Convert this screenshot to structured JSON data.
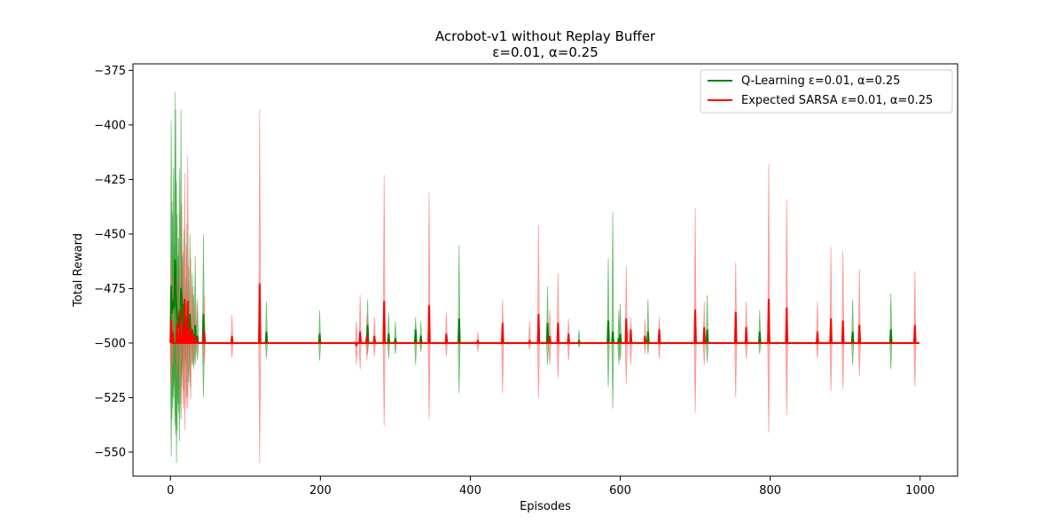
{
  "chart_data": {
    "type": "line",
    "title": "Acrobot-v1 without Replay Buffer",
    "subtitle": "ε=0.01, α=0.25",
    "xlabel": "Episodes",
    "ylabel": "Total Reward",
    "xlim": [
      -50,
      1050
    ],
    "ylim": [
      -561,
      -372
    ],
    "xticks": [
      0,
      200,
      400,
      600,
      800,
      1000
    ],
    "yticks": [
      -550,
      -525,
      -500,
      -475,
      -450,
      -425,
      -400,
      -375
    ],
    "grid": false,
    "legend_position": "top-right",
    "baseline": -500,
    "x_count": 1000,
    "series": [
      {
        "name": "Q-Learning ε=0.01, α=0.25",
        "color": "#008000",
        "band_color": "#2ca02c",
        "spikes": [
          [
            1,
            -474,
            -398,
            -552
          ],
          [
            2,
            -486,
            -435,
            -535
          ],
          [
            3,
            -481,
            -440,
            -530
          ],
          [
            4,
            -484,
            -420,
            -525
          ],
          [
            5,
            -483,
            -455,
            -520
          ],
          [
            6,
            -462,
            -385,
            -538
          ],
          [
            7,
            -472,
            -393,
            -542
          ],
          [
            8,
            -484,
            -426,
            -555
          ],
          [
            9,
            -488,
            -441,
            -540
          ],
          [
            10,
            -493,
            -460,
            -528
          ],
          [
            11,
            -491,
            -452,
            -532
          ],
          [
            12,
            -486,
            -420,
            -545
          ],
          [
            14,
            -475,
            -393,
            -535
          ],
          [
            15,
            -478,
            -436,
            -520
          ],
          [
            16,
            -490,
            -460,
            -512
          ],
          [
            18,
            -482,
            -448,
            -522
          ],
          [
            20,
            -495,
            -470,
            -510
          ],
          [
            22,
            -488,
            -445,
            -525
          ],
          [
            24,
            -493,
            -465,
            -518
          ],
          [
            26,
            -487,
            -450,
            -520
          ],
          [
            29,
            -494,
            -468,
            -510
          ],
          [
            31,
            -496,
            -478,
            -512
          ],
          [
            33,
            -492,
            -460,
            -510
          ],
          [
            36,
            -497,
            -480,
            -508
          ],
          [
            44,
            -487,
            -450,
            -525
          ],
          [
            128,
            -495,
            -481,
            -507
          ],
          [
            199,
            -496,
            -485,
            -508
          ],
          [
            263,
            -492,
            -480,
            -505
          ],
          [
            291,
            -496,
            -486,
            -507
          ],
          [
            300,
            -498,
            -490,
            -505
          ],
          [
            327,
            -494,
            -488,
            -510
          ],
          [
            334,
            -497,
            -490,
            -504
          ],
          [
            385,
            -489,
            -455,
            -523
          ],
          [
            503,
            -491,
            -474,
            -510
          ],
          [
            545,
            -499,
            -494,
            -502
          ],
          [
            584,
            -490,
            -461,
            -520
          ],
          [
            590,
            -495,
            -440,
            -530
          ],
          [
            598,
            -498,
            -485,
            -510
          ],
          [
            600,
            -496,
            -482,
            -508
          ],
          [
            637,
            -495,
            -480,
            -505
          ],
          [
            716,
            -494,
            -478,
            -509
          ],
          [
            786,
            -495,
            -485,
            -505
          ],
          [
            910,
            -495,
            -480,
            -510
          ],
          [
            961,
            -494,
            -477,
            -512
          ]
        ]
      },
      {
        "name": "Expected SARSA ε=0.01, α=0.25",
        "color": "#ff0000",
        "band_color": "#ff6666",
        "spikes": [
          [
            1,
            -490,
            -462,
            -520
          ],
          [
            3,
            -495,
            -470,
            -510
          ],
          [
            9,
            -491,
            -470,
            -515
          ],
          [
            13,
            -485,
            -440,
            -528
          ],
          [
            17,
            -492,
            -458,
            -530
          ],
          [
            19,
            -480,
            -422,
            -540
          ],
          [
            21,
            -490,
            -455,
            -530
          ],
          [
            23,
            -481,
            -414,
            -530
          ],
          [
            27,
            -493,
            -461,
            -526
          ],
          [
            30,
            -496,
            -474,
            -510
          ],
          [
            34,
            -497,
            -482,
            -505
          ],
          [
            45,
            -495,
            -478,
            -510
          ],
          [
            82,
            -497,
            -487,
            -507
          ],
          [
            119,
            -473,
            -393,
            -555
          ],
          [
            248,
            -501,
            -490,
            -510
          ],
          [
            253,
            -495,
            -478,
            -512
          ],
          [
            262,
            -497,
            -487,
            -508
          ],
          [
            272,
            -497,
            -488,
            -506
          ],
          [
            285,
            -481,
            -423,
            -538
          ],
          [
            345,
            -483,
            -431,
            -535
          ],
          [
            368,
            -496,
            -486,
            -506
          ],
          [
            410,
            -499,
            -495,
            -504
          ],
          [
            443,
            -491,
            -480,
            -523
          ],
          [
            479,
            -499,
            -490,
            -503
          ],
          [
            491,
            -487,
            -446,
            -525
          ],
          [
            506,
            -497,
            -485,
            -510
          ],
          [
            517,
            -491,
            -468,
            -516
          ],
          [
            531,
            -496,
            -489,
            -508
          ],
          [
            608,
            -489,
            -465,
            -519
          ],
          [
            614,
            -494,
            -488,
            -510
          ],
          [
            633,
            -497,
            -489,
            -505
          ],
          [
            652,
            -494,
            -488,
            -507
          ],
          [
            700,
            -485,
            -438,
            -532
          ],
          [
            712,
            -493,
            -481,
            -510
          ],
          [
            754,
            -486,
            -463,
            -525
          ],
          [
            768,
            -493,
            -481,
            -507
          ],
          [
            798,
            -480,
            -418,
            -541
          ],
          [
            822,
            -484,
            -434,
            -533
          ],
          [
            863,
            -495,
            -481,
            -507
          ],
          [
            881,
            -489,
            -456,
            -522
          ],
          [
            897,
            -490,
            -458,
            -521
          ],
          [
            919,
            -492,
            -466,
            -515
          ],
          [
            993,
            -492,
            -467,
            -520
          ]
        ]
      }
    ]
  }
}
